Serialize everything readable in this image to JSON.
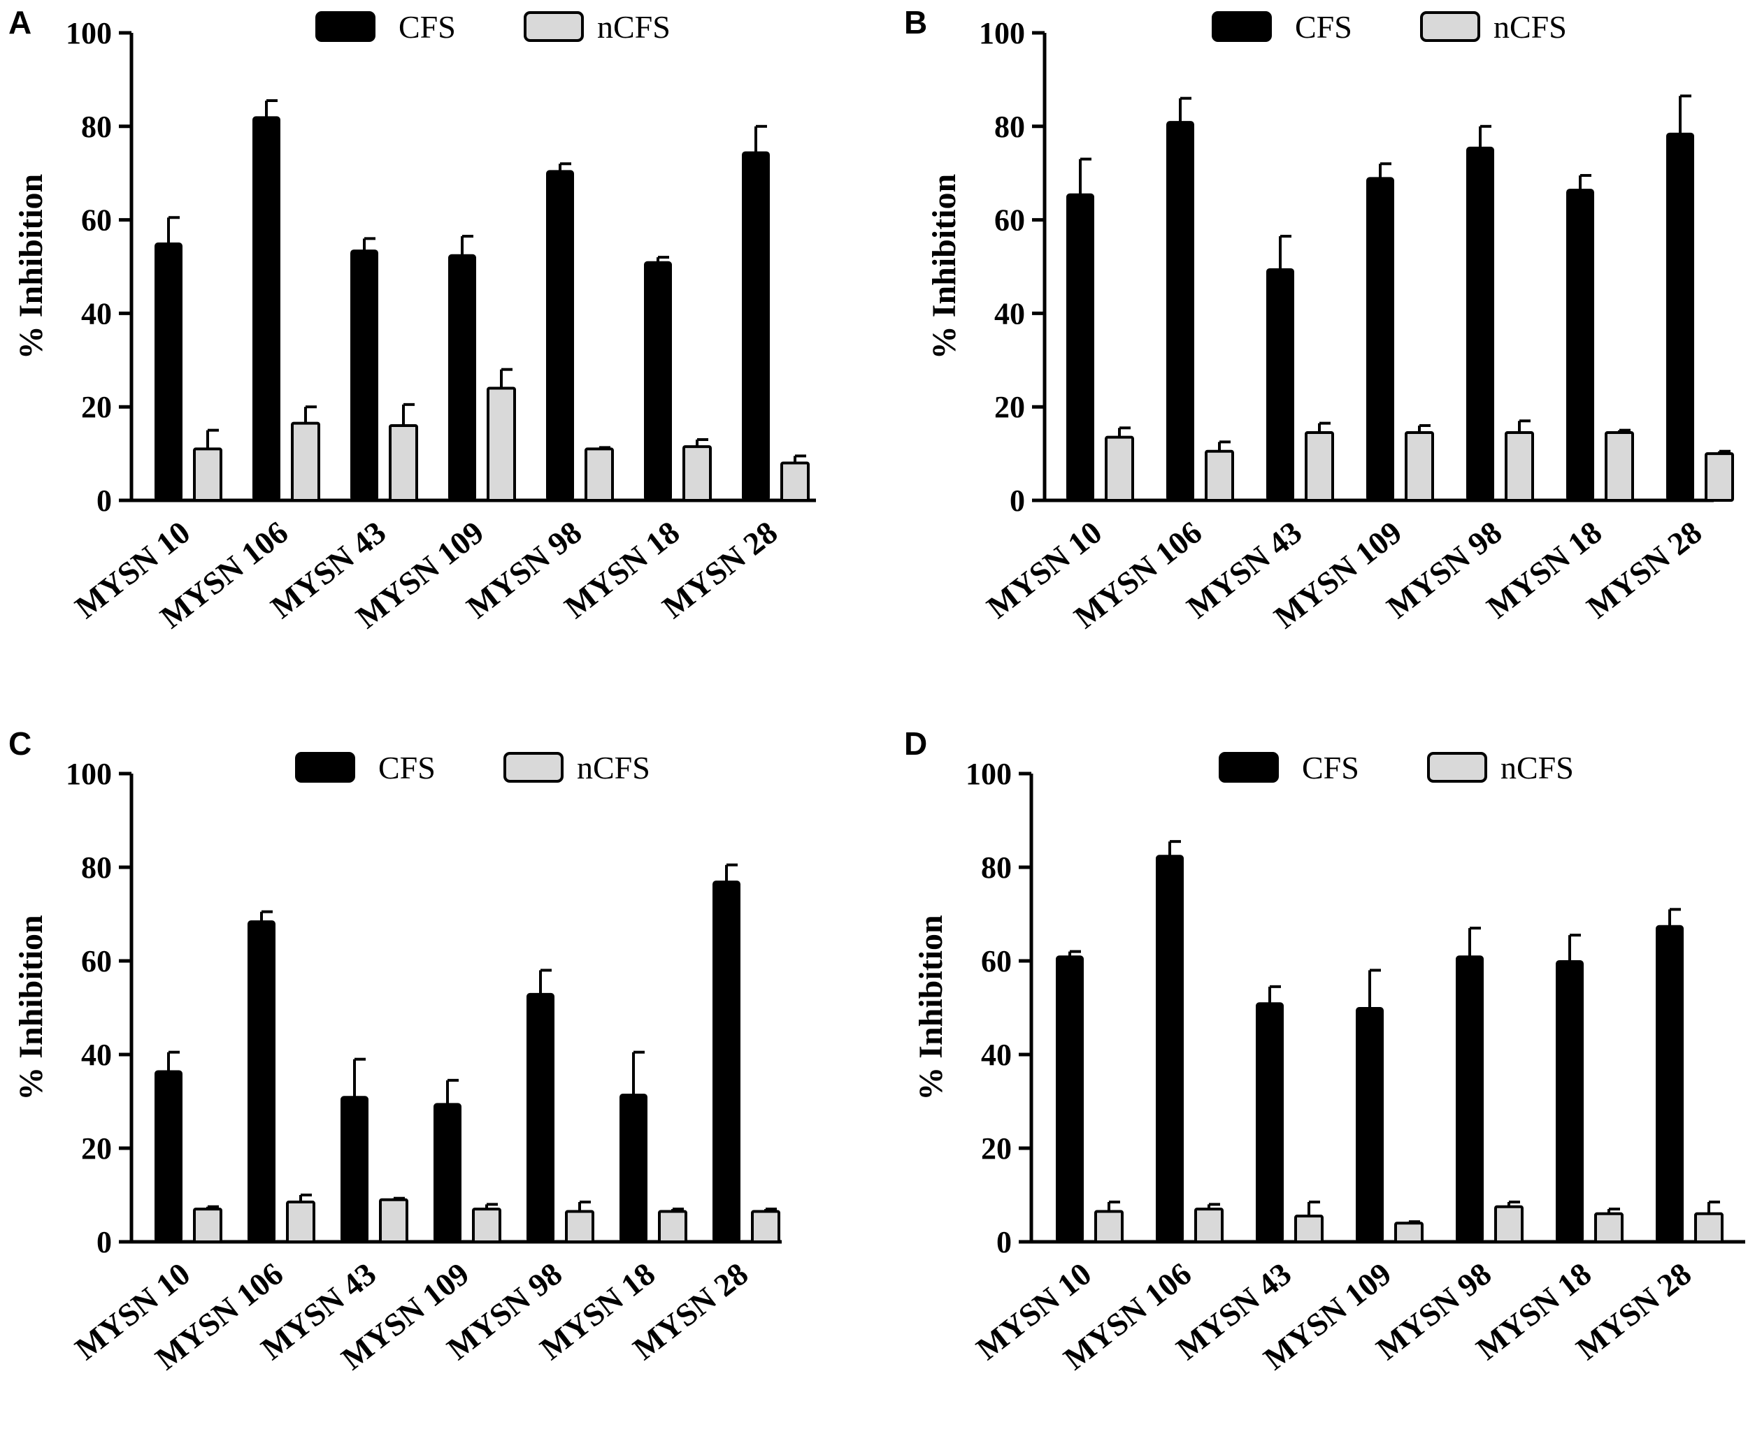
{
  "figure": {
    "legend": {
      "cfs": "CFS",
      "ncfs": "nCFS"
    },
    "colors": {
      "cfs": "#000000",
      "ncfs": "#d9d9d9",
      "axis": "#000000"
    }
  },
  "chart_data": [
    {
      "panel": "A",
      "type": "bar",
      "ylabel": "% Inhibition",
      "ylim": [
        0,
        100
      ],
      "yticks": [
        "0",
        "20",
        "40",
        "60",
        "80",
        "100"
      ],
      "categories": [
        "MYSN 10",
        "MYSN 106",
        "MYSN 43",
        "MYSN 109",
        "MYSN 98",
        "MYSN 18",
        "MYSN 28"
      ],
      "series": [
        {
          "name": "CFS",
          "values": [
            55,
            82,
            53.5,
            52.5,
            70.5,
            51,
            74.5
          ],
          "errors": [
            5.5,
            3.5,
            2.5,
            4,
            1.5,
            1,
            5.5
          ]
        },
        {
          "name": "nCFS",
          "values": [
            11,
            16.5,
            16,
            24,
            11,
            11.5,
            8
          ],
          "errors": [
            4,
            3.5,
            4.5,
            4,
            0.3,
            1.5,
            1.5
          ]
        }
      ]
    },
    {
      "panel": "B",
      "type": "bar",
      "ylabel": "% Inhibition",
      "ylim": [
        0,
        100
      ],
      "yticks": [
        "0",
        "20",
        "40",
        "60",
        "80",
        "100"
      ],
      "categories": [
        "MYSN 10",
        "MYSN 106",
        "MYSN 43",
        "MYSN 109",
        "MYSN 98",
        "MYSN 18",
        "MYSN 28"
      ],
      "series": [
        {
          "name": "CFS",
          "values": [
            65.5,
            81,
            49.5,
            69,
            75.5,
            66.5,
            78.5
          ],
          "errors": [
            7.5,
            5,
            7,
            3,
            4.5,
            3,
            8
          ]
        },
        {
          "name": "nCFS",
          "values": [
            13.5,
            10.5,
            14.5,
            14.5,
            14.5,
            14.5,
            10
          ],
          "errors": [
            2,
            2,
            2,
            1.5,
            2.5,
            0.5,
            0.5
          ]
        }
      ]
    },
    {
      "panel": "C",
      "type": "bar",
      "ylabel": "% Inhibition",
      "ylim": [
        0,
        100
      ],
      "yticks": [
        "0",
        "20",
        "40",
        "60",
        "80",
        "100"
      ],
      "categories": [
        "MYSN 10",
        "MYSN 106",
        "MYSN 43",
        "MYSN 109",
        "MYSN 98",
        "MYSN 18",
        "MYSN 28"
      ],
      "series": [
        {
          "name": "CFS",
          "values": [
            36.5,
            68.5,
            31,
            29.5,
            53,
            31.5,
            77
          ],
          "errors": [
            4,
            2,
            8,
            5,
            5,
            9,
            3.5
          ]
        },
        {
          "name": "nCFS",
          "values": [
            7,
            8.5,
            9,
            7,
            6.5,
            6.5,
            6.5
          ],
          "errors": [
            0.5,
            1.5,
            0.3,
            1,
            2,
            0.5,
            0.5
          ]
        }
      ]
    },
    {
      "panel": "D",
      "type": "bar",
      "ylabel": "% Inhibition",
      "ylim": [
        0,
        100
      ],
      "yticks": [
        "0",
        "20",
        "40",
        "60",
        "80",
        "100"
      ],
      "categories": [
        "MYSN 10",
        "MYSN 106",
        "MYSN 43",
        "MYSN 109",
        "MYSN 98",
        "MYSN 18",
        "MYSN 28"
      ],
      "series": [
        {
          "name": "CFS",
          "values": [
            61,
            82.5,
            51,
            50,
            61,
            60,
            67.5
          ],
          "errors": [
            1,
            3,
            3.5,
            8,
            6,
            5.5,
            3.5
          ]
        },
        {
          "name": "nCFS",
          "values": [
            6.5,
            7,
            5.5,
            4,
            7.5,
            6,
            6
          ],
          "errors": [
            2,
            1,
            3,
            0.3,
            1,
            1,
            2.5
          ]
        }
      ]
    }
  ]
}
